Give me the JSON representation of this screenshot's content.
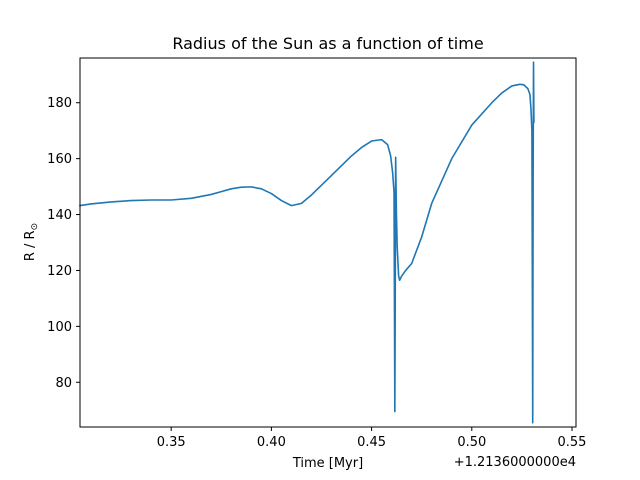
{
  "chart_data": {
    "type": "line",
    "title": "Radius of the Sun as a function of time",
    "xlabel": "Time [Myr]",
    "ylabel": "R / R",
    "ylabel_subscript": "⊙",
    "x_offset_label": "+1.2136000000e4",
    "xlim": [
      0.3045,
      0.552
    ],
    "ylim": [
      64.0,
      196.0
    ],
    "x_ticks": [
      0.35,
      0.4,
      0.45,
      0.5,
      0.55
    ],
    "x_tick_labels": [
      "0.35",
      "0.40",
      "0.45",
      "0.50",
      "0.55"
    ],
    "y_ticks": [
      80,
      100,
      120,
      140,
      160,
      180
    ],
    "y_tick_labels": [
      "80",
      "100",
      "120",
      "140",
      "160",
      "180"
    ],
    "grid": false,
    "legend": "none",
    "colors": {
      "line": "#1f77b4",
      "axes": "#000000",
      "background": "#ffffff"
    },
    "series": [
      {
        "x": [
          0.3045,
          0.31,
          0.32,
          0.33,
          0.34,
          0.35,
          0.36,
          0.37,
          0.375,
          0.38,
          0.385,
          0.39,
          0.395,
          0.4,
          0.405,
          0.41,
          0.415,
          0.42,
          0.43,
          0.44,
          0.445,
          0.45,
          0.455,
          0.458,
          0.4595,
          0.4605,
          0.4612,
          0.4614,
          0.4616,
          0.4618,
          0.462,
          0.4622,
          0.4624,
          0.4628,
          0.4635,
          0.464,
          0.465,
          0.467,
          0.47,
          0.475,
          0.48,
          0.49,
          0.5,
          0.51,
          0.515,
          0.52,
          0.524,
          0.526,
          0.528,
          0.529,
          0.5295,
          0.53,
          0.5302,
          0.5304,
          0.5306,
          0.5308,
          0.531
        ],
        "y": [
          143.2,
          143.8,
          144.5,
          145.0,
          145.2,
          145.2,
          145.8,
          147.2,
          148.2,
          149.2,
          149.8,
          149.9,
          149.2,
          147.5,
          145.0,
          143.2,
          144.0,
          147.0,
          154.0,
          161.0,
          164.0,
          166.3,
          166.8,
          165.0,
          161.0,
          155.0,
          148.0,
          110.0,
          69.5,
          110.0,
          160.5,
          150.0,
          140.0,
          128.0,
          118.0,
          116.5,
          118.0,
          120.0,
          122.5,
          132.0,
          144.0,
          160.0,
          172.0,
          180.0,
          183.5,
          186.0,
          186.6,
          186.4,
          185.0,
          183.0,
          178.0,
          170.0,
          120.0,
          65.5,
          150.0,
          194.5,
          173.0
        ]
      }
    ]
  }
}
